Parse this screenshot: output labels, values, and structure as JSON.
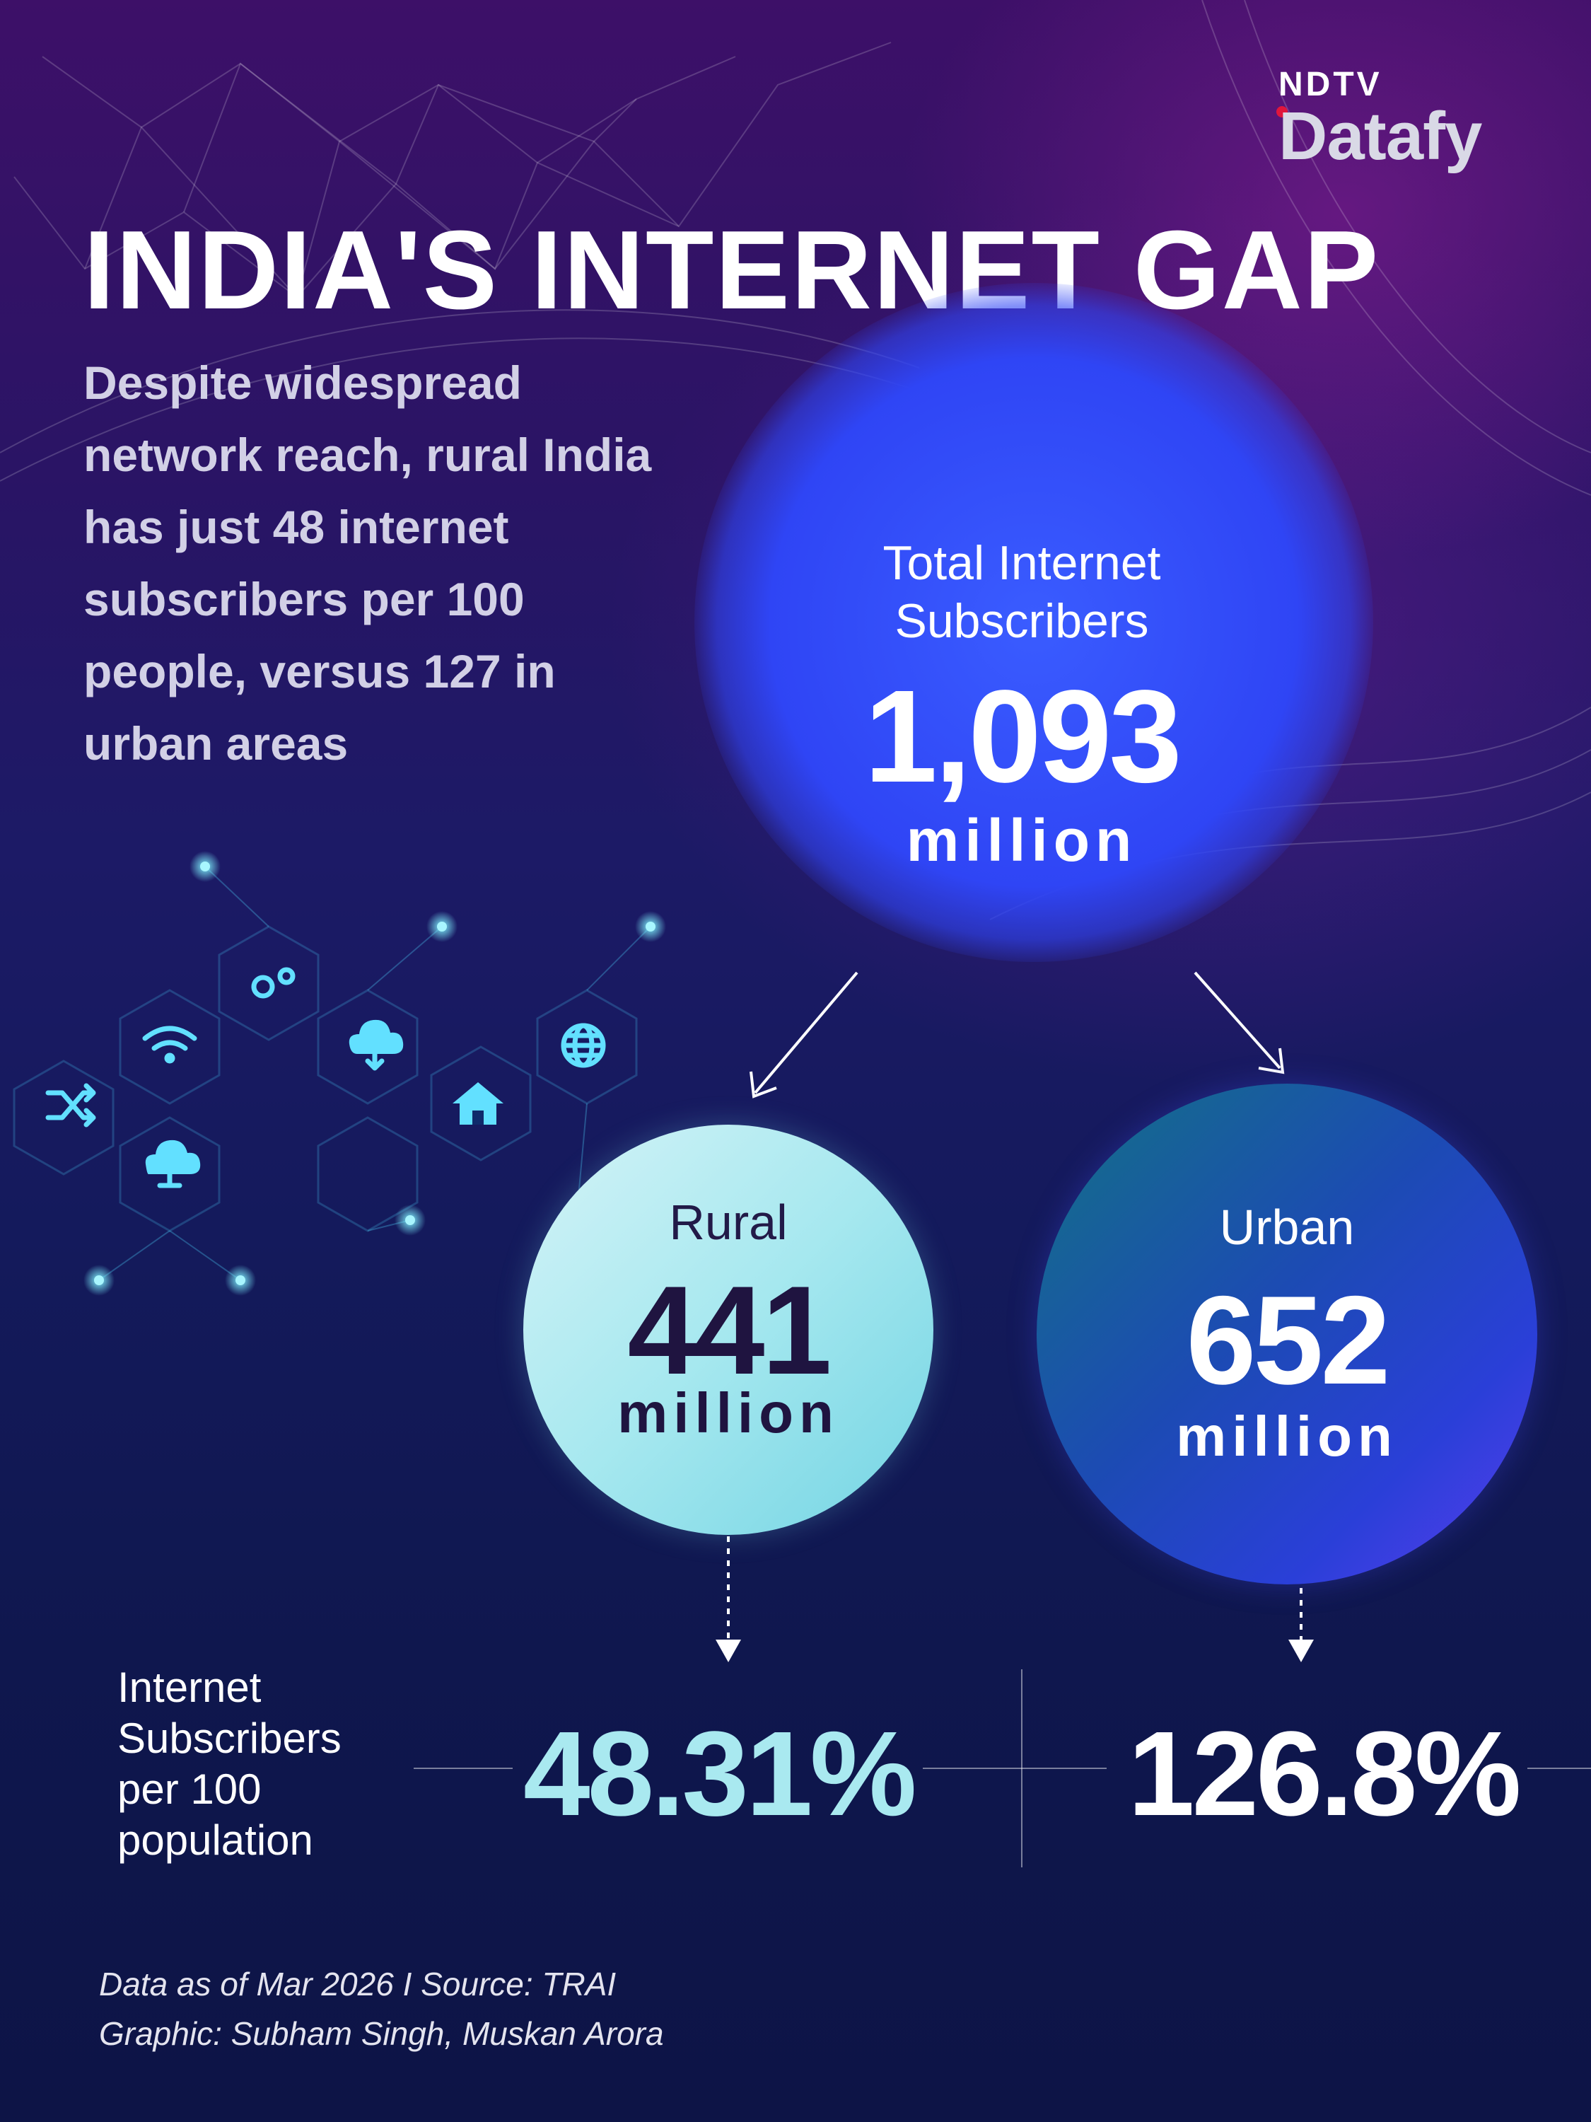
{
  "logo": {
    "brand_top": "NDTV",
    "brand_bottom": "Datafy"
  },
  "header": {
    "title": "INDIA'S INTERNET GAP",
    "subtitle": "Despite widespread network reach, rural India has just 48 internet subscribers per 100 people, versus 127 in urban areas"
  },
  "total": {
    "label": "Total Internet Subscribers",
    "value": "1,093",
    "unit": "million"
  },
  "rural": {
    "label": "Rural",
    "value": "441",
    "unit": "million",
    "per100": "48.31%"
  },
  "urban": {
    "label": "Urban",
    "value": "652",
    "unit": "million",
    "per100": "126.8%"
  },
  "per100_label": "Internet Subscribers per 100 population",
  "footer": {
    "data_note": "Data as of Mar 2026 I Source: TRAI",
    "credits": "Graphic: Subham Singh, Muskan Arora"
  },
  "colors": {
    "accent_blue": "#2f45f5",
    "rural_cyan": "#a6e8ef",
    "rural_text": "#1f1440",
    "urban_blue": "#1c4bb3",
    "logo_red": "#e0163c"
  },
  "icons": [
    "shuffle-icon",
    "wifi-icon",
    "cloud-icon",
    "gears-icon",
    "cloud-download-icon",
    "home-icon",
    "globe-icon"
  ]
}
